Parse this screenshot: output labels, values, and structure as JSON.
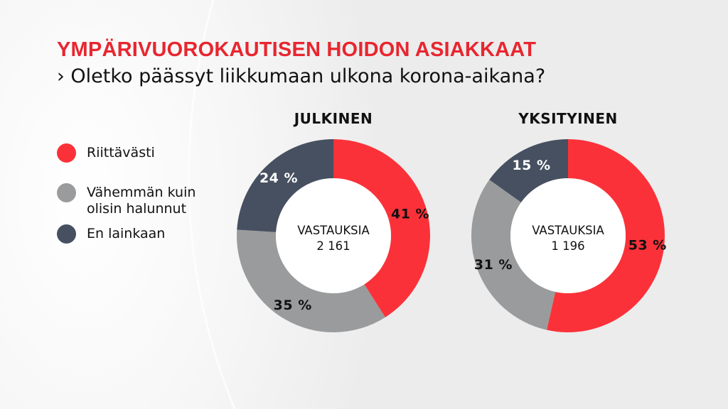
{
  "header": {
    "title": "YMPÄRIVUOROKAUTISEN HOIDON ASIAKKAAT",
    "subtitle": "› Oletko päässyt liikkumaan ulkona korona-aikana?"
  },
  "colors": {
    "title": "#e8262f",
    "riittavasti": "#fb3139",
    "vahemman": "#9a9b9c",
    "ei_lainkaan": "#465060"
  },
  "legend": [
    {
      "label_lines": [
        "Riittävästi"
      ],
      "color": "#fb3139"
    },
    {
      "label_lines": [
        "Vähemmän kuin",
        "olisin halunnut"
      ],
      "color": "#9a9b9c"
    },
    {
      "label_lines": [
        "En lainkaan"
      ],
      "color": "#465060"
    }
  ],
  "chart_data": [
    {
      "type": "pie",
      "title": "JULKINEN",
      "center_label": [
        "VASTAUKSIA",
        "2 161"
      ],
      "categories": [
        "Riittävästi",
        "Vähemmän kuin olisin halunnut",
        "En lainkaan"
      ],
      "values": [
        41,
        35,
        24
      ],
      "value_labels": [
        "41 %",
        "35 %",
        "24 %"
      ],
      "colors": [
        "#fb3139",
        "#9a9b9c",
        "#465060"
      ],
      "label_colors": [
        "#111111",
        "#111111",
        "#ffffff"
      ]
    },
    {
      "type": "pie",
      "title": "YKSITYINEN",
      "center_label": [
        "VASTAUKSIA",
        "1 196"
      ],
      "categories": [
        "Riittävästi",
        "Vähemmän kuin olisin halunnut",
        "En lainkaan"
      ],
      "values": [
        53,
        31,
        15
      ],
      "value_labels": [
        "53 %",
        "31 %",
        "15 %"
      ],
      "colors": [
        "#fb3139",
        "#9a9b9c",
        "#465060"
      ],
      "label_colors": [
        "#111111",
        "#111111",
        "#ffffff"
      ]
    }
  ]
}
